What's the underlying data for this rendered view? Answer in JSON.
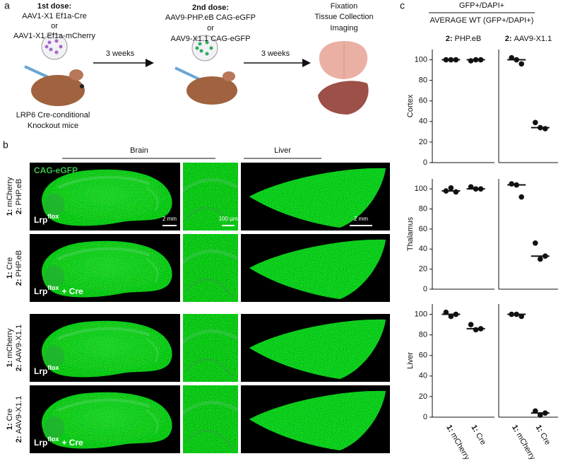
{
  "panel_a": {
    "label": "a",
    "first_dose": {
      "heading": "1st dose:",
      "lines": [
        "AAV1-X1 Ef1a-Cre",
        "or",
        "AAV1-X1 Ef1a-mCherry"
      ]
    },
    "interval_1": "3 weeks",
    "second_dose": {
      "heading": "2nd dose:",
      "lines": [
        "AAV9-PHP.eB CAG-eGFP",
        "or",
        "AAV9-X1.1 CAG-eGFP"
      ]
    },
    "interval_2": "3 weeks",
    "endpoint": [
      "Fixation",
      "Tissue Collection",
      "Imaging"
    ],
    "mouse": [
      "LRP6 Cre-conditional",
      "Knockout mice"
    ]
  },
  "panel_b": {
    "label": "b",
    "brain_header": "Brain",
    "liver_header": "Liver",
    "stain": "CAG-eGFP",
    "scale_bars": [
      "2 mm",
      "100 µm",
      "2 mm"
    ],
    "rows": [
      {
        "dose1_prefix": "1:",
        "dose1": "mCherry",
        "dose2_prefix": "2:",
        "dose2": "PHP.eB",
        "genotype": "Lrp",
        "genotype_sup": "flox"
      },
      {
        "dose1_prefix": "1:",
        "dose1": "Cre",
        "dose2_prefix": "2:",
        "dose2": "PHP.eB",
        "genotype": "Lrp",
        "genotype_sup": "flox",
        "genotype_suffix": "+ Cre"
      },
      {
        "dose1_prefix": "1:",
        "dose1": "mCherry",
        "dose2_prefix": "2:",
        "dose2": "AAV9-X1.1",
        "genotype": "Lrp",
        "genotype_sup": "flox"
      },
      {
        "dose1_prefix": "1:",
        "dose1": "Cre",
        "dose2_prefix": "2:",
        "dose2": "AAV9-X1.1",
        "genotype": "Lrp",
        "genotype_sup": "flox",
        "genotype_suffix": "+ Cre"
      }
    ]
  },
  "panel_c": {
    "label": "c",
    "numerator": "GFP+/DAPI+",
    "denominator": "AVERAGE WT (GFP+/DAPI+)"
  },
  "chart_data": [
    {
      "type": "strip",
      "title_prefix": "2:",
      "title": "PHP.eB",
      "ylabel": "Cortex",
      "categories": [
        null,
        null
      ],
      "values": [
        [
          100,
          100,
          100
        ],
        [
          99,
          100,
          100
        ]
      ],
      "medians": [
        100,
        100
      ],
      "ylim": [
        0,
        110
      ],
      "yticks": [
        0,
        20,
        40,
        60,
        80,
        100
      ]
    },
    {
      "type": "strip",
      "title_prefix": "2:",
      "title": "AAV9-X1.1",
      "categories": [
        null,
        null
      ],
      "values": [
        [
          102,
          100,
          96
        ],
        [
          39,
          34,
          33
        ]
      ],
      "medians": [
        100,
        34
      ],
      "ylim": [
        0,
        110
      ]
    },
    {
      "type": "strip",
      "ylabel": "Thalamus",
      "categories": [
        null,
        null
      ],
      "values": [
        [
          98,
          101,
          97
        ],
        [
          102,
          100,
          100
        ]
      ],
      "medians": [
        98,
        100
      ],
      "ylim": [
        0,
        110
      ],
      "yticks": [
        0,
        20,
        40,
        60,
        80,
        100
      ]
    },
    {
      "type": "strip",
      "categories": [
        null,
        null
      ],
      "values": [
        [
          105,
          104,
          92
        ],
        [
          46,
          30,
          33
        ]
      ],
      "medians": [
        104,
        33
      ],
      "ylim": [
        0,
        110
      ]
    },
    {
      "type": "strip",
      "ylabel": "Liver",
      "category_prefix": "1:",
      "categories": [
        "mCherry",
        "Cre"
      ],
      "values": [
        [
          102,
          98,
          100
        ],
        [
          90,
          85,
          86
        ]
      ],
      "medians": [
        100,
        86
      ],
      "ylim": [
        0,
        110
      ],
      "yticks": [
        0,
        20,
        40,
        60,
        80,
        100
      ]
    },
    {
      "type": "strip",
      "category_prefix": "1:",
      "categories": [
        "mCherry",
        "Cre"
      ],
      "values": [
        [
          100,
          100,
          98
        ],
        [
          6,
          2,
          4
        ]
      ],
      "medians": [
        100,
        4
      ],
      "ylim": [
        0,
        110
      ]
    }
  ]
}
